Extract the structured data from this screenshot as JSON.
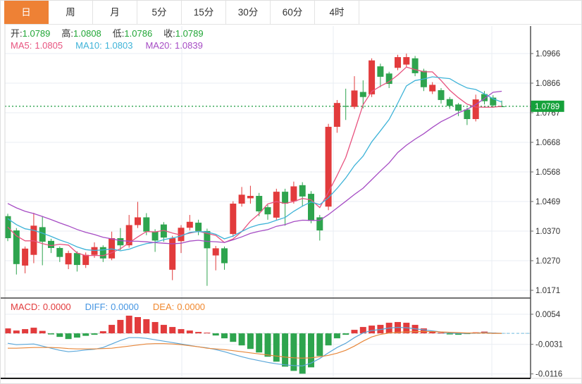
{
  "tabs": {
    "items": [
      {
        "name": "day",
        "label": "日",
        "active": true
      },
      {
        "name": "week",
        "label": "周",
        "active": false
      },
      {
        "name": "month",
        "label": "月",
        "active": false
      },
      {
        "name": "5min",
        "label": "5分",
        "active": false
      },
      {
        "name": "15min",
        "label": "15分",
        "active": false
      },
      {
        "name": "30min",
        "label": "30分",
        "active": false
      },
      {
        "name": "60min",
        "label": "60分",
        "active": false
      },
      {
        "name": "4hour",
        "label": "4时",
        "active": false
      }
    ]
  },
  "quote_header": {
    "ohlc": [
      {
        "label": "开:",
        "value": "1.0789"
      },
      {
        "label": "高:",
        "value": "1.0808"
      },
      {
        "label": "低:",
        "value": "1.0786"
      },
      {
        "label": "收:",
        "value": "1.0789"
      }
    ],
    "ma": [
      {
        "label": "MA5:",
        "value": "1.0805",
        "color": "#e8537f"
      },
      {
        "label": "MA10:",
        "value": "1.0803",
        "color": "#3eb3d8"
      },
      {
        "label": "MA20:",
        "value": "1.0839",
        "color": "#a64cc4"
      }
    ]
  },
  "macd_header": {
    "items": [
      {
        "label": "MACD:",
        "value": "0.0000",
        "color": "#e23b3c"
      },
      {
        "label": "DIFF:",
        "value": "0.0000",
        "color": "#4495e2"
      },
      {
        "label": "DEA:",
        "value": "0.0000",
        "color": "#f0882e"
      }
    ]
  },
  "colors": {
    "up_candle": "#e23b3c",
    "down_candle": "#2ea44e",
    "ma5": "#e8537f",
    "ma10": "#3eb3d8",
    "ma20": "#a64cc4",
    "current_price_line": "#2ba24c",
    "current_price_tag_bg": "#15a13a",
    "grid": "#e9eef3",
    "axis_line": "#444444",
    "tick_text": "#333333",
    "macd_diff_line": "#5ba7d9",
    "macd_dea_line": "#e8873a",
    "tab_active_bg": "#ee8135"
  },
  "chart_data": [
    {
      "type": "candlestick",
      "title": "daily-candles-with-ma",
      "y_tick_labels": [
        "1.0966",
        "1.0866",
        "1.0767",
        "1.0668",
        "1.0568",
        "1.0469",
        "1.0370",
        "1.0270",
        "1.0171"
      ],
      "ylim": [
        1.0155,
        1.0985
      ],
      "grid": true,
      "current_price": "1.0789",
      "ma_periods": [
        5,
        10,
        20
      ],
      "pre_closes": [
        1.056,
        1.0552,
        1.0545,
        1.0538,
        1.053,
        1.052,
        1.051,
        1.05,
        1.049,
        1.048,
        1.047,
        1.046,
        1.045,
        1.044,
        1.043,
        1.042,
        1.0405,
        1.0395,
        1.0388,
        1.0382
      ],
      "candles_format": [
        "open",
        "close",
        "low",
        "high"
      ],
      "candles": [
        [
          1.042,
          1.0346,
          1.0336,
          1.0428
        ],
        [
          1.0372,
          1.0259,
          1.0224,
          1.038
        ],
        [
          1.0254,
          1.0311,
          1.0228,
          1.0318
        ],
        [
          1.029,
          1.0388,
          1.0262,
          1.0431
        ],
        [
          1.0383,
          1.0334,
          1.0255,
          1.042
        ],
        [
          1.0337,
          1.0313,
          1.0296,
          1.0344
        ],
        [
          1.0313,
          1.0283,
          1.0266,
          1.0318
        ],
        [
          1.0258,
          1.0296,
          1.0242,
          1.0304
        ],
        [
          1.0296,
          1.0256,
          1.0234,
          1.0302
        ],
        [
          1.0256,
          1.029,
          1.0246,
          1.0298
        ],
        [
          1.029,
          1.0316,
          1.028,
          1.0332
        ],
        [
          1.0316,
          1.0278,
          1.0266,
          1.0322
        ],
        [
          1.0278,
          1.0346,
          1.0272,
          1.0368
        ],
        [
          1.0346,
          1.0322,
          1.0306,
          1.038
        ],
        [
          1.0322,
          1.039,
          1.0314,
          1.0424
        ],
        [
          1.039,
          1.0416,
          1.038,
          1.0468
        ],
        [
          1.0416,
          1.0368,
          1.0356,
          1.043
        ],
        [
          1.0368,
          1.0338,
          1.03,
          1.0376
        ],
        [
          1.0392,
          1.0348,
          1.0334,
          1.04
        ],
        [
          1.024,
          1.0346,
          1.0205,
          1.0354
        ],
        [
          1.0336,
          1.0381,
          1.0296,
          1.039
        ],
        [
          1.0381,
          1.0401,
          1.0372,
          1.0424
        ],
        [
          1.0398,
          1.037,
          1.0356,
          1.0408
        ],
        [
          1.037,
          1.0312,
          1.0186,
          1.0378
        ],
        [
          1.0288,
          1.0312,
          1.0238,
          1.032
        ],
        [
          1.0312,
          1.0262,
          1.024,
          1.0318
        ],
        [
          1.036,
          1.0462,
          1.035,
          1.047
        ],
        [
          1.0462,
          1.0492,
          1.0452,
          1.0518
        ],
        [
          1.048,
          1.0488,
          1.0462,
          1.0522
        ],
        [
          1.0488,
          1.0436,
          1.042,
          1.0498
        ],
        [
          1.045,
          1.0426,
          1.0408,
          1.0458
        ],
        [
          1.0415,
          1.0502,
          1.0408,
          1.0512
        ],
        [
          1.0502,
          1.0462,
          1.0388,
          1.0512
        ],
        [
          1.047,
          1.052,
          1.0462,
          1.0536
        ],
        [
          1.0524,
          1.0486,
          1.0452,
          1.0534
        ],
        [
          1.0495,
          1.0404,
          1.0396,
          1.0504
        ],
        [
          1.0416,
          1.0372,
          1.0338,
          1.0424
        ],
        [
          1.0452,
          1.072,
          1.044,
          1.073
        ],
        [
          1.072,
          1.08,
          1.07,
          1.081
        ],
        [
          1.079,
          1.0789,
          1.0743,
          1.0848
        ],
        [
          1.0787,
          1.0842,
          1.078,
          1.089
        ],
        [
          1.0837,
          1.082,
          1.0782,
          1.0876
        ],
        [
          1.0829,
          1.0943,
          1.082,
          1.095
        ],
        [
          1.0923,
          1.0888,
          1.0853,
          1.0932
        ],
        [
          1.0899,
          1.0864,
          1.085,
          1.0905
        ],
        [
          1.0918,
          1.0954,
          1.091,
          1.0962
        ],
        [
          1.0929,
          1.0954,
          1.092,
          1.0966
        ],
        [
          1.095,
          1.09,
          1.089,
          1.0958
        ],
        [
          1.0908,
          1.0853,
          1.084,
          1.0915
        ],
        [
          1.0839,
          1.0861,
          1.083,
          1.087
        ],
        [
          1.0843,
          1.081,
          1.0798,
          1.085
        ],
        [
          1.0813,
          1.079,
          1.078,
          1.082
        ],
        [
          1.0795,
          1.0774,
          1.0756,
          1.08
        ],
        [
          1.0778,
          1.0746,
          1.0726,
          1.0784
        ],
        [
          1.0746,
          1.0812,
          1.0738,
          1.0828
        ],
        [
          1.083,
          1.0806,
          1.0795,
          1.084
        ],
        [
          1.0818,
          1.0792,
          1.0784,
          1.0826
        ],
        [
          1.0789,
          1.0789,
          1.0786,
          1.0808
        ]
      ]
    },
    {
      "type": "bar",
      "title": "macd-panel",
      "y_tick_labels": [
        "0.0054",
        "-0.0031",
        "-0.0116"
      ],
      "ylim": [
        -0.0128,
        0.0066
      ],
      "grid": true,
      "histogram": [
        0.0014,
        0.0008,
        0.0012,
        0.0016,
        0.0007,
        -0.0003,
        -0.001,
        -0.0016,
        -0.0012,
        -0.0007,
        -0.0004,
        0.0006,
        0.0024,
        0.0038,
        0.005,
        0.0046,
        0.004,
        0.0032,
        0.0024,
        0.0018,
        0.0012,
        0.0008,
        0.0004,
        0.0002,
        -0.0006,
        -0.0014,
        -0.0024,
        -0.0034,
        -0.0044,
        -0.0054,
        -0.0066,
        -0.008,
        -0.0094,
        -0.0106,
        -0.0114,
        -0.0096,
        -0.0064,
        -0.0034,
        -0.0014,
        -0.0004,
        0.001,
        0.0018,
        0.0022,
        0.0024,
        0.003,
        0.0032,
        0.003,
        0.0024,
        0.0014,
        0.0006,
        0.0002,
        -0.0003,
        -0.0004,
        -0.0002,
        0.0003,
        0.0005,
        0.0002,
        0.0
      ],
      "diff": [
        -0.0028,
        -0.0032,
        -0.0031,
        -0.003,
        -0.0036,
        -0.0042,
        -0.0048,
        -0.0052,
        -0.005,
        -0.0047,
        -0.0045,
        -0.004,
        -0.003,
        -0.002,
        -0.0012,
        -0.0012,
        -0.0014,
        -0.0018,
        -0.0022,
        -0.0026,
        -0.003,
        -0.0034,
        -0.0038,
        -0.0041,
        -0.0046,
        -0.0052,
        -0.0059,
        -0.0066,
        -0.0072,
        -0.0077,
        -0.0082,
        -0.0086,
        -0.0089,
        -0.0091,
        -0.0092,
        -0.0084,
        -0.0071,
        -0.0055,
        -0.004,
        -0.0028,
        -0.0012,
        0.0001,
        0.0008,
        0.0011,
        0.0015,
        0.0017,
        0.0016,
        0.0013,
        0.001,
        0.0007,
        0.0004,
        0.0001,
        0.0,
        0.0,
        0.0001,
        0.0002,
        0.0001,
        0.0
      ],
      "dea": [
        -0.0042,
        -0.0042,
        -0.0041,
        -0.004,
        -0.004,
        -0.004,
        -0.0041,
        -0.0043,
        -0.0044,
        -0.0044,
        -0.0044,
        -0.0043,
        -0.0042,
        -0.0039,
        -0.0036,
        -0.0033,
        -0.003,
        -0.0029,
        -0.0029,
        -0.003,
        -0.0032,
        -0.0035,
        -0.0038,
        -0.0042,
        -0.0044,
        -0.0046,
        -0.0049,
        -0.0052,
        -0.0055,
        -0.0058,
        -0.0061,
        -0.0064,
        -0.0067,
        -0.0069,
        -0.007,
        -0.0069,
        -0.0066,
        -0.0062,
        -0.0056,
        -0.0048,
        -0.0036,
        -0.0022,
        -0.001,
        -0.0003,
        0.0001,
        0.0003,
        0.0004,
        0.0005,
        0.0005,
        0.0005,
        0.0004,
        0.0003,
        0.0002,
        0.0001,
        0.0001,
        0.0001,
        0.0,
        0.0
      ]
    }
  ]
}
